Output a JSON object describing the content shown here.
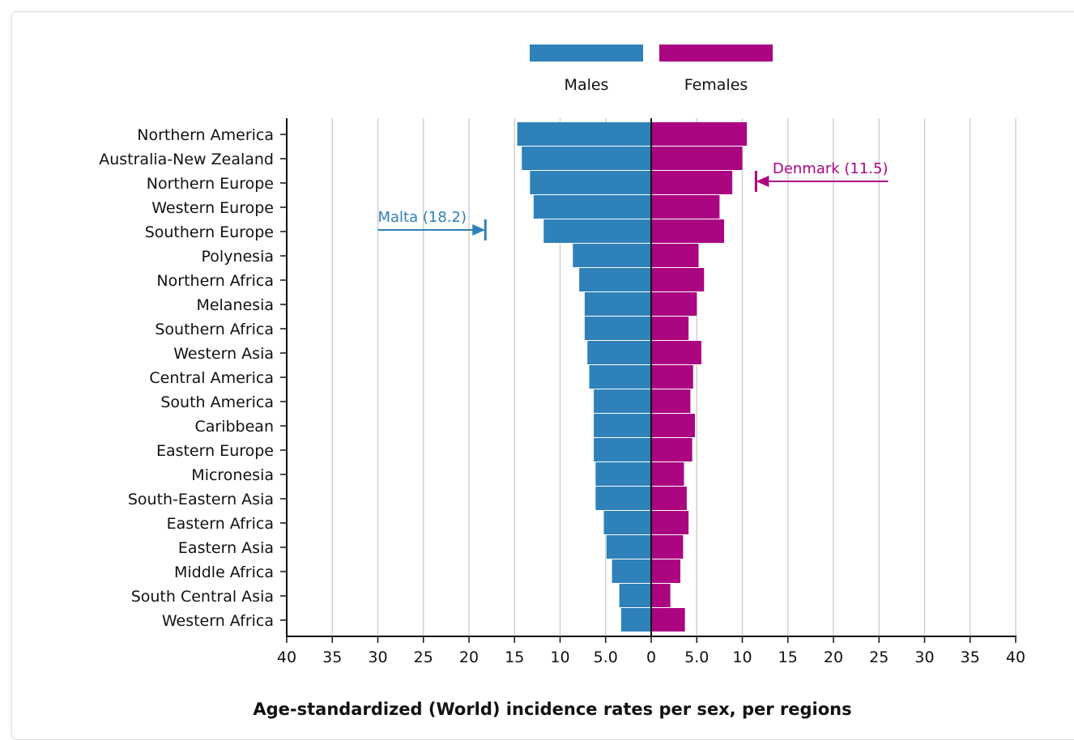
{
  "chart_data": {
    "type": "bar",
    "orientation": "horizontal-diverging",
    "xlabel": "Age-standardized (World) incidence rates per sex, per regions",
    "xlim": [
      -40,
      40
    ],
    "x_ticks": [
      -40,
      -35,
      -30,
      -25,
      -20,
      -15,
      -10,
      -5,
      0,
      5,
      10,
      15,
      20,
      25,
      30,
      35,
      40
    ],
    "x_tick_labels": [
      "40",
      "35",
      "30",
      "25",
      "20",
      "15",
      "10",
      "5.0",
      "0",
      "5.0",
      "10",
      "15",
      "20",
      "25",
      "30",
      "35",
      "40"
    ],
    "grid": true,
    "legend_position": "top",
    "categories": [
      "Northern America",
      "Australia-New Zealand",
      "Northern Europe",
      "Western Europe",
      "Southern Europe",
      "Polynesia",
      "Northern Africa",
      "Melanesia",
      "Southern Africa",
      "Western Asia",
      "Central America",
      "South America",
      "Caribbean",
      "Eastern Europe",
      "Micronesia",
      "South-Eastern Asia",
      "Eastern Africa",
      "Eastern Asia",
      "Middle Africa",
      "South Central Asia",
      "Western Africa"
    ],
    "series": [
      {
        "name": "Males",
        "color": "#2e81b9",
        "values": [
          14.7,
          14.2,
          13.3,
          12.9,
          11.8,
          8.6,
          7.9,
          7.3,
          7.3,
          7.0,
          6.8,
          6.3,
          6.3,
          6.3,
          6.1,
          6.1,
          5.2,
          4.9,
          4.3,
          3.5,
          3.3
        ]
      },
      {
        "name": "Females",
        "color": "#ab0582",
        "values": [
          10.5,
          10.0,
          8.9,
          7.5,
          8.0,
          5.2,
          5.8,
          5.0,
          4.1,
          5.5,
          4.6,
          4.3,
          4.8,
          4.5,
          3.6,
          3.9,
          4.1,
          3.5,
          3.2,
          2.1,
          3.7
        ]
      }
    ],
    "annotations": [
      {
        "text": "Malta (18.2)",
        "series": "Males",
        "value": 18.2,
        "color": "#2e81b9",
        "tail_value": 30,
        "category_index": 4
      },
      {
        "text": "Denmark (11.5)",
        "series": "Females",
        "value": 11.5,
        "color": "#ab0582",
        "tail_value": 26,
        "category_index": 2
      }
    ]
  }
}
